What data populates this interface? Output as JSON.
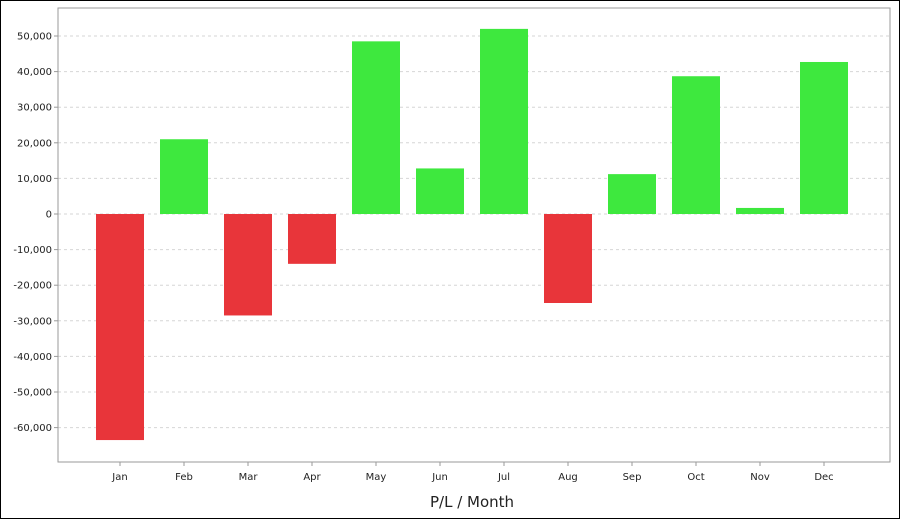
{
  "chart_data": {
    "type": "bar",
    "xlabel": "P/L / Month",
    "ylabel": "",
    "categories": [
      "Jan",
      "Feb",
      "Mar",
      "Apr",
      "May",
      "Jun",
      "Jul",
      "Aug",
      "Sep",
      "Oct",
      "Nov",
      "Dec"
    ],
    "values": [
      -63500,
      21000,
      -28500,
      -14000,
      48500,
      12800,
      52000,
      -25000,
      11200,
      38700,
      1700,
      42700
    ],
    "ylim": [
      -70000,
      60000
    ],
    "yticks": [
      50000,
      40000,
      30000,
      20000,
      10000,
      0,
      -10000,
      -20000,
      -30000,
      -40000,
      -50000,
      -60000
    ],
    "ytick_labels": [
      "50,000",
      "40,000",
      "30,000",
      "20,000",
      "10,000",
      "0",
      "-10,000",
      "-20,000",
      "-30,000",
      "-40,000",
      "-50,000",
      "-60,000"
    ],
    "grid": true,
    "colors": {
      "positive": "#3ee83e",
      "negative": "#e8353a",
      "grid": "#d6d6d6",
      "axis": "#9a9a9a"
    }
  }
}
